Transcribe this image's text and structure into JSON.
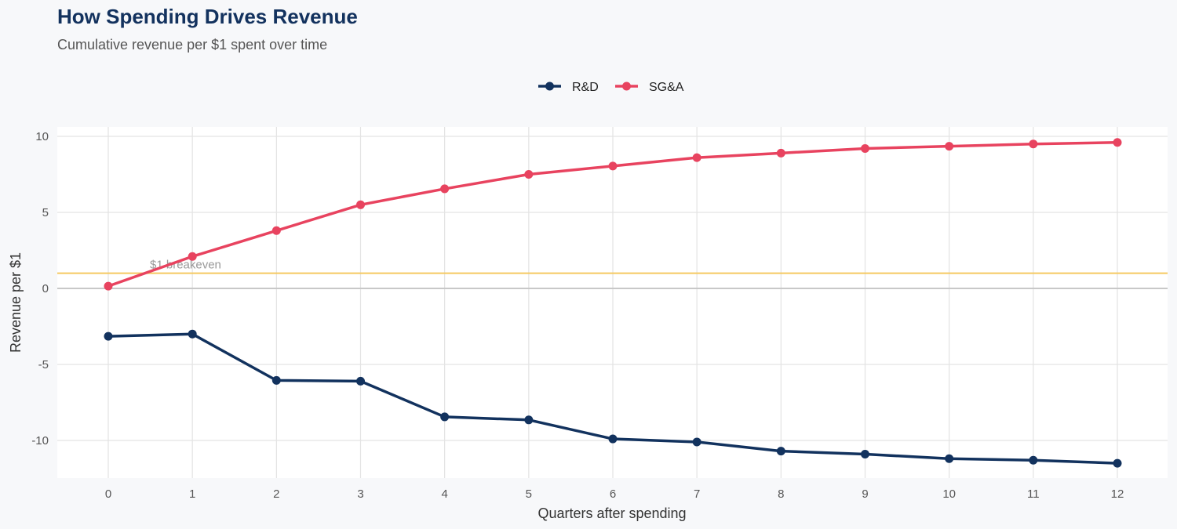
{
  "title": "How Spending Drives Revenue",
  "subtitle": "Cumulative revenue per $1 spent over time",
  "chart_data": {
    "type": "line",
    "xlabel": "Quarters after spending",
    "ylabel": "Revenue per $1",
    "x": [
      0,
      1,
      2,
      3,
      4,
      5,
      6,
      7,
      8,
      9,
      10,
      11,
      12
    ],
    "xlim": [
      -0.6,
      12.6
    ],
    "ylim": [
      -12.7,
      10.6
    ],
    "xticks": [
      0,
      1,
      2,
      3,
      4,
      5,
      6,
      7,
      8,
      9,
      10,
      11,
      12
    ],
    "yticks": [
      -10,
      -5,
      0,
      5,
      10
    ],
    "ytick_labels": [
      "-10",
      "-5",
      "0",
      "5",
      "10"
    ],
    "grid": true,
    "legend_position": "top",
    "series": [
      {
        "name": "R&D",
        "color": "#12325e",
        "values": [
          -3.15,
          -3.0,
          -6.05,
          -6.1,
          -8.45,
          -8.65,
          -9.9,
          -10.1,
          -10.7,
          -10.9,
          -11.2,
          -11.3,
          -11.5
        ]
      },
      {
        "name": "SG&A",
        "color": "#e8435f",
        "values": [
          0.15,
          2.1,
          3.8,
          5.5,
          6.55,
          7.5,
          8.05,
          8.6,
          8.9,
          9.2,
          9.35,
          9.5,
          9.6
        ]
      }
    ],
    "reference_line": {
      "y": 1,
      "label": "$1 breakeven",
      "color": "#f5c960"
    }
  }
}
